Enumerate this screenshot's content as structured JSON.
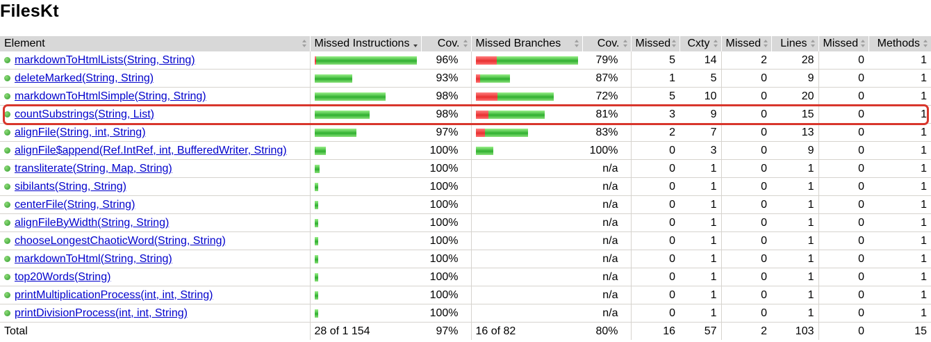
{
  "title": "FilesKt",
  "headers": {
    "element": "Element",
    "missed_instructions": "Missed Instructions",
    "cov1": "Cov.",
    "missed_branches": "Missed Branches",
    "cov2": "Cov.",
    "missed_cxty": "Missed",
    "cxty": "Cxty",
    "missed_lines": "Missed",
    "lines": "Lines",
    "missed_methods": "Missed",
    "methods": "Methods"
  },
  "colors": {
    "missed_bar": "#e83030",
    "covered_bar": "#30b030",
    "highlight": "#d8362c",
    "link": "#0000cc"
  },
  "rows": [
    {
      "name": "markdownToHtmlLists(String, String)",
      "instr_missed_frac": 0.02,
      "instr_covered_frac": 0.98,
      "instr_cov": "96%",
      "br_missed_frac": 0.21,
      "br_covered_frac": 0.79,
      "br_cov": "79%",
      "missed_cxty": "5",
      "cxty": "14",
      "missed_lines": "2",
      "lines": "28",
      "missed_methods": "0",
      "methods": "1"
    },
    {
      "name": "deleteMarked(String, String)",
      "instr_missed_frac": 0.0,
      "instr_covered_frac": 0.36,
      "instr_cov": "93%",
      "br_missed_frac": 0.04,
      "br_covered_frac": 0.29,
      "br_cov": "87%",
      "missed_cxty": "1",
      "cxty": "5",
      "missed_lines": "0",
      "lines": "9",
      "missed_methods": "0",
      "methods": "1"
    },
    {
      "name": "markdownToHtmlSimple(String, String)",
      "instr_missed_frac": 0.0,
      "instr_covered_frac": 0.68,
      "instr_cov": "98%",
      "br_missed_frac": 0.21,
      "br_covered_frac": 0.54,
      "br_cov": "72%",
      "missed_cxty": "5",
      "cxty": "10",
      "missed_lines": "0",
      "lines": "20",
      "missed_methods": "0",
      "methods": "1"
    },
    {
      "name": "countSubstrings(String, List)",
      "instr_missed_frac": 0.0,
      "instr_covered_frac": 0.53,
      "instr_cov": "98%",
      "br_missed_frac": 0.12,
      "br_covered_frac": 0.54,
      "br_cov": "81%",
      "missed_cxty": "3",
      "cxty": "9",
      "missed_lines": "0",
      "lines": "15",
      "missed_methods": "0",
      "methods": "1"
    },
    {
      "name": "alignFile(String, int, String)",
      "instr_missed_frac": 0.0,
      "instr_covered_frac": 0.4,
      "instr_cov": "97%",
      "br_missed_frac": 0.09,
      "br_covered_frac": 0.41,
      "br_cov": "83%",
      "missed_cxty": "2",
      "cxty": "7",
      "missed_lines": "0",
      "lines": "13",
      "missed_methods": "0",
      "methods": "1"
    },
    {
      "name": "alignFile$append(Ref.IntRef, int, BufferedWriter, String)",
      "instr_missed_frac": 0.0,
      "instr_covered_frac": 0.11,
      "instr_cov": "100%",
      "br_missed_frac": 0.0,
      "br_covered_frac": 0.17,
      "br_cov": "100%",
      "missed_cxty": "0",
      "cxty": "3",
      "missed_lines": "0",
      "lines": "9",
      "missed_methods": "0",
      "methods": "1"
    },
    {
      "name": "transliterate(String, Map, String)",
      "instr_missed_frac": 0.0,
      "instr_covered_frac": 0.05,
      "instr_cov": "100%",
      "br_missed_frac": 0.0,
      "br_covered_frac": 0.0,
      "br_cov": "n/a",
      "missed_cxty": "0",
      "cxty": "1",
      "missed_lines": "0",
      "lines": "1",
      "missed_methods": "0",
      "methods": "1"
    },
    {
      "name": "sibilants(String, String)",
      "instr_missed_frac": 0.0,
      "instr_covered_frac": 0.035,
      "instr_cov": "100%",
      "br_missed_frac": 0.0,
      "br_covered_frac": 0.0,
      "br_cov": "n/a",
      "missed_cxty": "0",
      "cxty": "1",
      "missed_lines": "0",
      "lines": "1",
      "missed_methods": "0",
      "methods": "1"
    },
    {
      "name": "centerFile(String, String)",
      "instr_missed_frac": 0.0,
      "instr_covered_frac": 0.035,
      "instr_cov": "100%",
      "br_missed_frac": 0.0,
      "br_covered_frac": 0.0,
      "br_cov": "n/a",
      "missed_cxty": "0",
      "cxty": "1",
      "missed_lines": "0",
      "lines": "1",
      "missed_methods": "0",
      "methods": "1"
    },
    {
      "name": "alignFileByWidth(String, String)",
      "instr_missed_frac": 0.0,
      "instr_covered_frac": 0.035,
      "instr_cov": "100%",
      "br_missed_frac": 0.0,
      "br_covered_frac": 0.0,
      "br_cov": "n/a",
      "missed_cxty": "0",
      "cxty": "1",
      "missed_lines": "0",
      "lines": "1",
      "missed_methods": "0",
      "methods": "1"
    },
    {
      "name": "chooseLongestChaoticWord(String, String)",
      "instr_missed_frac": 0.0,
      "instr_covered_frac": 0.035,
      "instr_cov": "100%",
      "br_missed_frac": 0.0,
      "br_covered_frac": 0.0,
      "br_cov": "n/a",
      "missed_cxty": "0",
      "cxty": "1",
      "missed_lines": "0",
      "lines": "1",
      "missed_methods": "0",
      "methods": "1"
    },
    {
      "name": "markdownToHtml(String, String)",
      "instr_missed_frac": 0.0,
      "instr_covered_frac": 0.035,
      "instr_cov": "100%",
      "br_missed_frac": 0.0,
      "br_covered_frac": 0.0,
      "br_cov": "n/a",
      "missed_cxty": "0",
      "cxty": "1",
      "missed_lines": "0",
      "lines": "1",
      "missed_methods": "0",
      "methods": "1"
    },
    {
      "name": "top20Words(String)",
      "instr_missed_frac": 0.0,
      "instr_covered_frac": 0.025,
      "instr_cov": "100%",
      "br_missed_frac": 0.0,
      "br_covered_frac": 0.0,
      "br_cov": "n/a",
      "missed_cxty": "0",
      "cxty": "1",
      "missed_lines": "0",
      "lines": "1",
      "missed_methods": "0",
      "methods": "1"
    },
    {
      "name": "printMultiplicationProcess(int, int, String)",
      "instr_missed_frac": 0.0,
      "instr_covered_frac": 0.025,
      "instr_cov": "100%",
      "br_missed_frac": 0.0,
      "br_covered_frac": 0.0,
      "br_cov": "n/a",
      "missed_cxty": "0",
      "cxty": "1",
      "missed_lines": "0",
      "lines": "1",
      "missed_methods": "0",
      "methods": "1"
    },
    {
      "name": "printDivisionProcess(int, int, String)",
      "instr_missed_frac": 0.0,
      "instr_covered_frac": 0.025,
      "instr_cov": "100%",
      "br_missed_frac": 0.0,
      "br_covered_frac": 0.0,
      "br_cov": "n/a",
      "missed_cxty": "0",
      "cxty": "1",
      "missed_lines": "0",
      "lines": "1",
      "missed_methods": "0",
      "methods": "1"
    }
  ],
  "total": {
    "label": "Total",
    "instr": "28 of 1 154",
    "instr_cov": "97%",
    "br": "16 of 82",
    "br_cov": "80%",
    "missed_cxty": "16",
    "cxty": "57",
    "missed_lines": "2",
    "lines": "103",
    "missed_methods": "0",
    "methods": "15"
  },
  "highlighted_row": "countSubstrings(String, List)"
}
